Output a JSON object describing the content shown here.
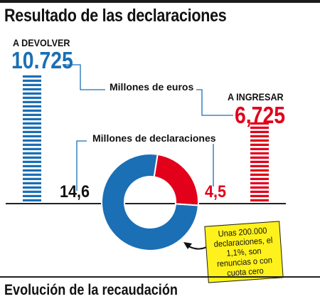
{
  "title": "Resultado de las declaraciones",
  "chart_data": [
    {
      "type": "bar",
      "unit_label": "Millones de euros",
      "categories": [
        "A DEVOLVER",
        "A INGRESAR"
      ],
      "values": [
        10725,
        6725
      ],
      "value_labels": [
        "10.725",
        "6,725"
      ],
      "colors": [
        "#1a6fb5",
        "#e2001a"
      ]
    },
    {
      "type": "pie",
      "unit_label": "Millones de declaraciones",
      "labels": [
        "A DEVOLVER",
        "A INGRESAR"
      ],
      "values": [
        14.6,
        4.5
      ],
      "value_labels": [
        "14,6",
        "4,5"
      ],
      "colors": [
        "#1a6fb5",
        "#e2001a"
      ]
    }
  ],
  "note": "Unas 200.000 declaraciones, el 1,1%, son renuncias o con cuota cero",
  "next_section_title": "Evolución de la recaudación"
}
